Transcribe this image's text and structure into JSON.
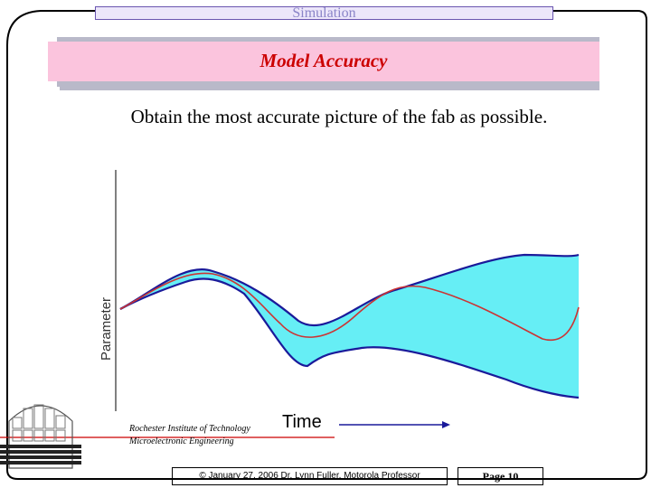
{
  "header": {
    "tab_label": "Simulation",
    "title": "Model Accuracy"
  },
  "body_text": {
    "statement": "Obtain the most accurate picture of the fab as possible."
  },
  "chart_data": {
    "type": "area",
    "xlabel": "Time",
    "ylabel": "Parameter",
    "grid": false,
    "legend": "none",
    "colors": {
      "band": "#66eef5",
      "bounds": "#1a1a9a",
      "mean": "#cc3333"
    },
    "series": [
      {
        "values": "upper bound"
      },
      {
        "values": "mean"
      },
      {
        "values": "lower bound"
      }
    ]
  },
  "institution": {
    "line1": "Rochester Institute of Technology",
    "line2": "Microelectronic Engineering"
  },
  "footer": {
    "copyright": "© January 27, 2006  Dr. Lynn Fuller, Motorola Professor",
    "page": "Page 10"
  },
  "icons": {
    "logo": "wafer-logo-icon"
  }
}
